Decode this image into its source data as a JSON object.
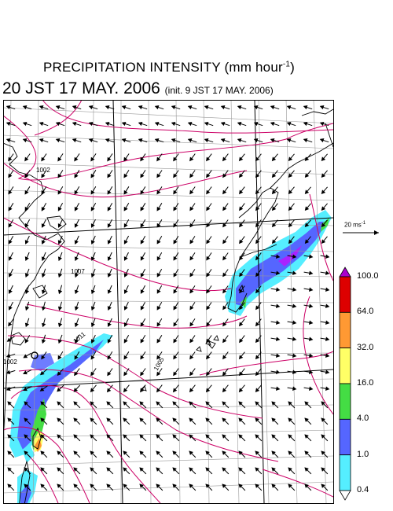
{
  "title": {
    "line1_main": "PRECIPITATION INTENSITY (mm hour",
    "line1_exp": "-1",
    "line1_close": ")",
    "line2_main": "20 JST 17 MAY. 2006",
    "line2_sub": "(init. 9 JST 17 MAY. 2006)"
  },
  "wind_scale": {
    "value": "20 ms",
    "exp": "-1"
  },
  "isobar_labels": [
    "1002",
    "1007",
    "1011",
    "1005",
    "1002"
  ],
  "colorbar": {
    "ticks": [
      "100.0",
      "64.0",
      "32.0",
      "16.0",
      "4.0",
      "1.0",
      "0.4"
    ],
    "colors": [
      "#dd0000",
      "#ff9933",
      "#ffff66",
      "#44dd44",
      "#5566ff",
      "#55eeff"
    ],
    "top_arrow_color": "#aa00cc",
    "bottom_arrow_color": "#ffffff"
  },
  "colors": {
    "isobar": "#cc0066",
    "grid": "#999999",
    "coast": "#000000"
  }
}
